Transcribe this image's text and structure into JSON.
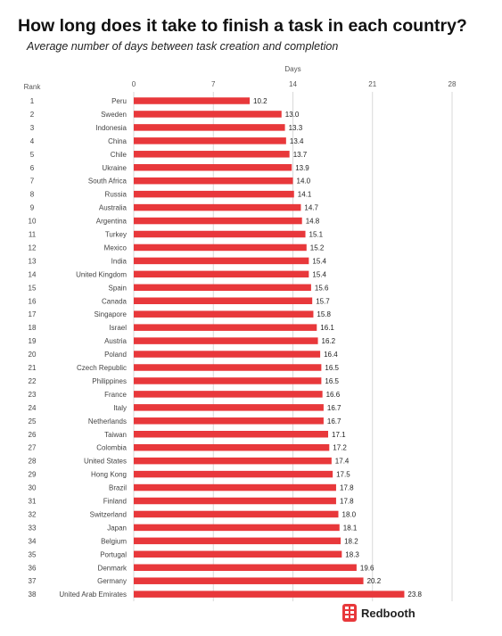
{
  "title": "How long does it take to finish a task in each country?",
  "subtitle": "Average number of days between task creation and completion",
  "brand": {
    "name": "Redbooth",
    "icon": "redbooth-logo-icon",
    "color": "#e8383b"
  },
  "chart_data": {
    "type": "bar",
    "orientation": "horizontal",
    "xlabel": "Days",
    "rank_header": "Rank",
    "xlim": [
      0,
      28
    ],
    "xticks": [
      0,
      7,
      14,
      21,
      28
    ],
    "grid": true,
    "bar_color": "#e8383b",
    "categories": [
      "Peru",
      "Sweden",
      "Indonesia",
      "China",
      "Chile",
      "Ukraine",
      "South Africa",
      "Russia",
      "Australia",
      "Argentina",
      "Turkey",
      "Mexico",
      "India",
      "United Kingdom",
      "Spain",
      "Canada",
      "Singapore",
      "Israel",
      "Austria",
      "Poland",
      "Czech Republic",
      "Philippines",
      "France",
      "Italy",
      "Netherlands",
      "Taiwan",
      "Colombia",
      "United States",
      "Hong Kong",
      "Brazil",
      "Finland",
      "Switzerland",
      "Japan",
      "Belgium",
      "Portugal",
      "Denmark",
      "Germany",
      "United Arab Emirates"
    ],
    "ranks": [
      "1",
      "2",
      "3",
      "4",
      "5",
      "6",
      "7",
      "8",
      "9",
      "10",
      "11",
      "12",
      "13",
      "14",
      "15",
      "16",
      "17",
      "18",
      "19",
      "20",
      "21",
      "22",
      "23",
      "24",
      "25",
      "26",
      "27",
      "28",
      "29",
      "30",
      "31",
      "32",
      "33",
      "34",
      "35",
      "36",
      "37",
      "38"
    ],
    "values": [
      10.2,
      13.0,
      13.3,
      13.4,
      13.7,
      13.9,
      14.0,
      14.1,
      14.7,
      14.8,
      15.1,
      15.2,
      15.4,
      15.4,
      15.6,
      15.7,
      15.8,
      16.1,
      16.2,
      16.4,
      16.5,
      16.5,
      16.6,
      16.7,
      16.7,
      17.1,
      17.2,
      17.4,
      17.5,
      17.8,
      17.8,
      18.0,
      18.1,
      18.2,
      18.3,
      19.6,
      20.2,
      23.8
    ]
  }
}
